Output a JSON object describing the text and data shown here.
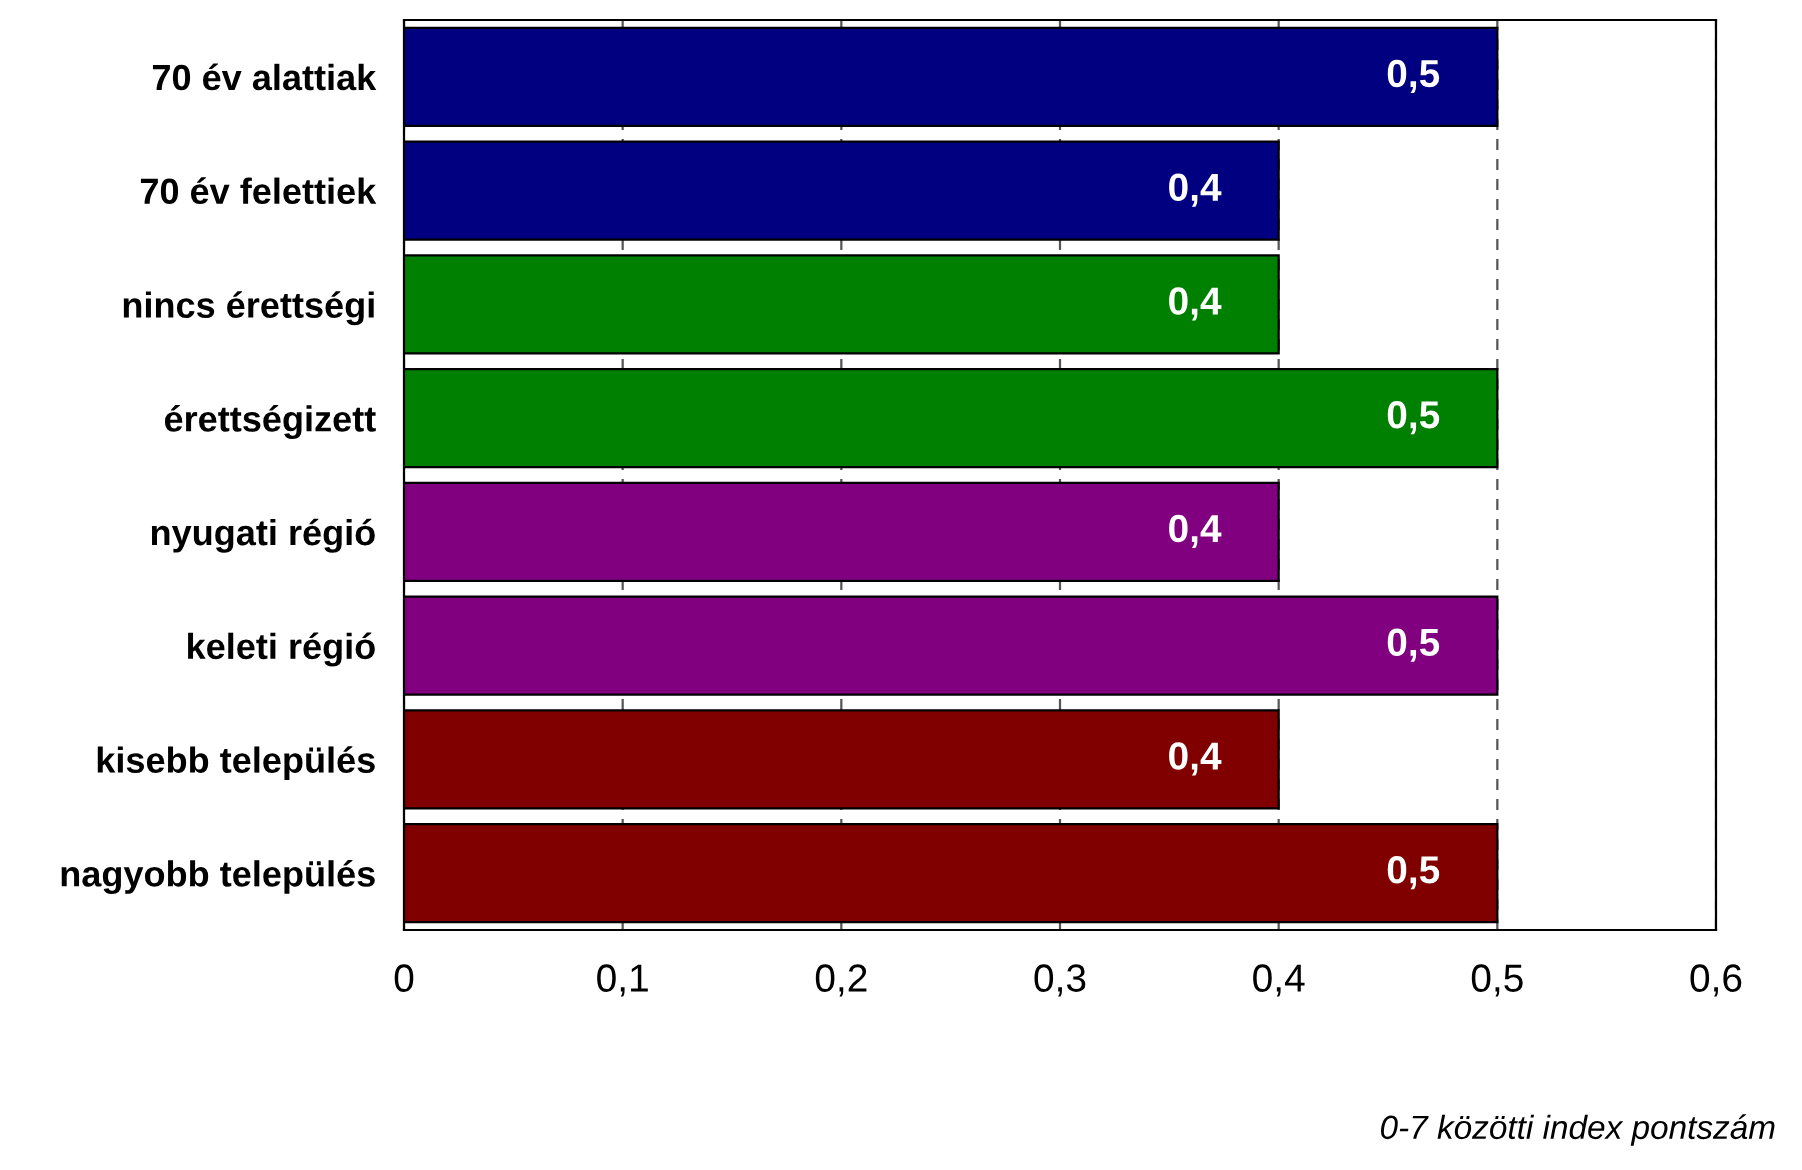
{
  "chart_data": {
    "type": "bar",
    "orientation": "horizontal",
    "xlabel": "0-7 közötti index pontszám",
    "categories": [
      "70 év alattiak",
      "70 év felettiek",
      "nincs érettségi",
      "érettségizett",
      "nyugati régió",
      "keleti régió",
      "kisebb település",
      "nagyobb település"
    ],
    "values": [
      0.5,
      0.4,
      0.4,
      0.5,
      0.4,
      0.5,
      0.4,
      0.5
    ],
    "colors": [
      "#000080",
      "#000080",
      "#008000",
      "#008000",
      "#800080",
      "#800080",
      "#800000",
      "#800000"
    ],
    "value_labels": [
      "0,5",
      "0,4",
      "0,4",
      "0,5",
      "0,4",
      "0,5",
      "0,4",
      "0,5"
    ],
    "xlim": [
      0,
      0.6
    ],
    "xticks": [
      0,
      {
        "value": 0.1,
        "label": "0,1"
      },
      {
        "value": 0.2,
        "label": "0,2"
      },
      {
        "value": 0.3,
        "label": "0,3"
      },
      {
        "value": 0.4,
        "label": "0,4"
      },
      {
        "value": 0.5,
        "label": "0,5"
      },
      {
        "value": 0.6,
        "label": "0,6"
      }
    ],
    "grid": "x",
    "line_style": "dashed"
  }
}
